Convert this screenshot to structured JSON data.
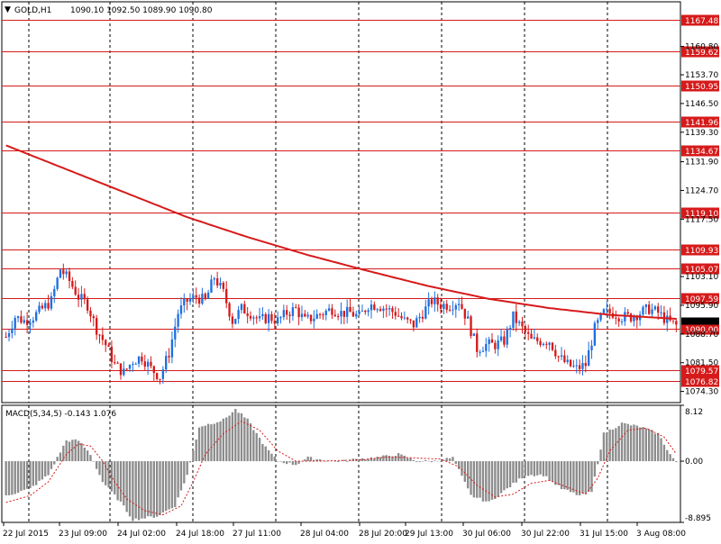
{
  "header": {
    "symbol": "GOLD,H1",
    "ohlc": "1090.10 1092.50 1089.90 1090.80"
  },
  "macd_header": "MACD(5,34,5) -0.143 1.076",
  "colors": {
    "background": "#ffffff",
    "bull": "#1e6fe0",
    "bear": "#d61a1a",
    "ma": "#d61a1a",
    "level": "#d61a1a",
    "histogram": "#8c8c8c",
    "signal": "#d61a1a",
    "grid": "#000000"
  },
  "chart_data": [
    {
      "type": "candlestick",
      "title": "GOLD,H1",
      "ylim": [
        1071.5,
        1172.0
      ],
      "y_ticks": [
        "1160.80",
        "1153.70",
        "1146.50",
        "1139.30",
        "1131.90",
        "1124.70",
        "1117.50",
        "1103.10",
        "1095.90",
        "1088.70",
        "1081.50",
        "1074.30"
      ],
      "x_ticks": [
        "22 Jul 2015",
        "23 Jul 09:00",
        "24 Jul 02:00",
        "24 Jul 18:00",
        "27 Jul 11:00",
        "28 Jul 04:00",
        "28 Jul 20:00",
        "29 Jul 13:00",
        "30 Jul 06:00",
        "30 Jul 22:00",
        "31 Jul 15:00",
        "3 Aug 08:00"
      ],
      "levels": [
        {
          "value": 1167.48,
          "label": "1167.48"
        },
        {
          "value": 1159.62,
          "label": "1159.62"
        },
        {
          "value": 1150.95,
          "label": "1150.95"
        },
        {
          "value": 1141.96,
          "label": "1141.96"
        },
        {
          "value": 1134.67,
          "label": "1134.67"
        },
        {
          "value": 1119.1,
          "label": "1119.10"
        },
        {
          "value": 1109.93,
          "label": "1109.93"
        },
        {
          "value": 1105.07,
          "label": "1105.07"
        },
        {
          "value": 1097.59,
          "label": "1097.59"
        },
        {
          "value": 1090.0,
          "label": "1090.00"
        },
        {
          "value": 1079.57,
          "label": "1079.57"
        },
        {
          "value": 1076.82,
          "label": "1076.82"
        }
      ],
      "current_price": 1090.8,
      "close_path": [
        [
          0,
          1088
        ],
        [
          3,
          1093
        ],
        [
          6,
          1092
        ],
        [
          9,
          1093
        ],
        [
          12,
          1095
        ],
        [
          15,
          1097
        ],
        [
          18,
          1105
        ],
        [
          21,
          1102
        ],
        [
          24,
          1098
        ],
        [
          27,
          1096
        ],
        [
          30,
          1090
        ],
        [
          33,
          1086
        ],
        [
          36,
          1081
        ],
        [
          39,
          1079
        ],
        [
          42,
          1082
        ],
        [
          45,
          1083
        ],
        [
          48,
          1080
        ],
        [
          51,
          1078
        ],
        [
          54,
          1084
        ],
        [
          57,
          1094
        ],
        [
          60,
          1097
        ],
        [
          63,
          1098
        ],
        [
          66,
          1097
        ],
        [
          69,
          1103
        ],
        [
          72,
          1099
        ],
        [
          75,
          1092
        ],
        [
          78,
          1095
        ],
        [
          81,
          1094
        ],
        [
          84,
          1092
        ],
        [
          87,
          1093
        ],
        [
          90,
          1092
        ],
        [
          93,
          1094
        ],
        [
          96,
          1095
        ],
        [
          99,
          1092
        ],
        [
          102,
          1093
        ],
        [
          105,
          1094
        ],
        [
          108,
          1095
        ],
        [
          111,
          1094
        ],
        [
          114,
          1094
        ],
        [
          117,
          1093
        ],
        [
          120,
          1096
        ],
        [
          123,
          1096
        ],
        [
          126,
          1095
        ],
        [
          129,
          1094
        ],
        [
          132,
          1092
        ],
        [
          135,
          1091
        ],
        [
          138,
          1094
        ],
        [
          141,
          1097
        ],
        [
          144,
          1096
        ],
        [
          147,
          1096
        ],
        [
          150,
          1097
        ],
        [
          153,
          1092
        ],
        [
          156,
          1085
        ],
        [
          159,
          1086
        ],
        [
          162,
          1086
        ],
        [
          165,
          1087
        ],
        [
          168,
          1093
        ],
        [
          171,
          1090
        ],
        [
          174,
          1087
        ],
        [
          177,
          1087
        ],
        [
          180,
          1087
        ],
        [
          183,
          1083
        ],
        [
          186,
          1081
        ],
        [
          189,
          1080
        ],
        [
          192,
          1081
        ],
        [
          195,
          1090
        ],
        [
          198,
          1094
        ],
        [
          201,
          1094
        ],
        [
          204,
          1093
        ],
        [
          207,
          1093
        ],
        [
          210,
          1094
        ],
        [
          213,
          1095
        ],
        [
          216,
          1094
        ],
        [
          219,
          1092
        ],
        [
          222,
          1090.8
        ]
      ],
      "ma_path": [
        [
          0,
          1136
        ],
        [
          20,
          1130
        ],
        [
          40,
          1124
        ],
        [
          60,
          1118
        ],
        [
          80,
          1113
        ],
        [
          100,
          1108.5
        ],
        [
          120,
          1104.5
        ],
        [
          140,
          1100.7
        ],
        [
          160,
          1097.5
        ],
        [
          180,
          1095.2
        ],
        [
          200,
          1093.5
        ],
        [
          222,
          1092.5
        ]
      ]
    },
    {
      "type": "bar",
      "title": "MACD(5,34,5)",
      "values_label": "-0.143 1.076",
      "ylim": [
        -8.895,
        8.12
      ],
      "y_ticks": [
        "8.12",
        "0.00",
        "-8.895"
      ],
      "histogram_path": [
        [
          0,
          -5
        ],
        [
          8,
          -4
        ],
        [
          14,
          -2
        ],
        [
          20,
          3
        ],
        [
          24,
          3
        ],
        [
          28,
          1
        ],
        [
          32,
          -3
        ],
        [
          38,
          -6
        ],
        [
          42,
          -8.5
        ],
        [
          50,
          -8
        ],
        [
          56,
          -6.5
        ],
        [
          60,
          -2
        ],
        [
          64,
          5
        ],
        [
          72,
          6
        ],
        [
          76,
          7.5
        ],
        [
          80,
          6
        ],
        [
          86,
          2
        ],
        [
          90,
          0
        ],
        [
          96,
          -0.5
        ],
        [
          100,
          0.5
        ],
        [
          108,
          0
        ],
        [
          112,
          0
        ],
        [
          116,
          0.3
        ],
        [
          124,
          0.6
        ],
        [
          130,
          1
        ],
        [
          136,
          0
        ],
        [
          142,
          0
        ],
        [
          148,
          0.5
        ],
        [
          154,
          -5
        ],
        [
          160,
          -6
        ],
        [
          166,
          -4
        ],
        [
          172,
          -2
        ],
        [
          178,
          -2
        ],
        [
          184,
          -4
        ],
        [
          190,
          -5
        ],
        [
          194,
          -4.5
        ],
        [
          198,
          4
        ],
        [
          204,
          5.5
        ],
        [
          210,
          5
        ],
        [
          216,
          4
        ],
        [
          220,
          1
        ],
        [
          222,
          -0.143
        ]
      ],
      "signal_path": [
        [
          0,
          -6
        ],
        [
          8,
          -5
        ],
        [
          14,
          -3
        ],
        [
          20,
          1
        ],
        [
          24,
          2.5
        ],
        [
          28,
          2.2
        ],
        [
          32,
          0
        ],
        [
          36,
          -3
        ],
        [
          40,
          -5.5
        ],
        [
          46,
          -7.2
        ],
        [
          52,
          -7.8
        ],
        [
          58,
          -6.5
        ],
        [
          62,
          -3
        ],
        [
          66,
          1
        ],
        [
          72,
          4
        ],
        [
          78,
          5.8
        ],
        [
          84,
          4.5
        ],
        [
          90,
          1.5
        ],
        [
          96,
          0
        ],
        [
          104,
          0
        ],
        [
          118,
          0.2
        ],
        [
          126,
          0.6
        ],
        [
          134,
          0.5
        ],
        [
          144,
          0.3
        ],
        [
          150,
          -0.8
        ],
        [
          156,
          -3.5
        ],
        [
          162,
          -5.2
        ],
        [
          168,
          -4.8
        ],
        [
          174,
          -3.2
        ],
        [
          180,
          -2.8
        ],
        [
          186,
          -3.8
        ],
        [
          192,
          -4.8
        ],
        [
          196,
          -2.5
        ],
        [
          200,
          1.5
        ],
        [
          206,
          4.5
        ],
        [
          212,
          4.8
        ],
        [
          218,
          3.5
        ],
        [
          222,
          1.076
        ]
      ]
    }
  ]
}
